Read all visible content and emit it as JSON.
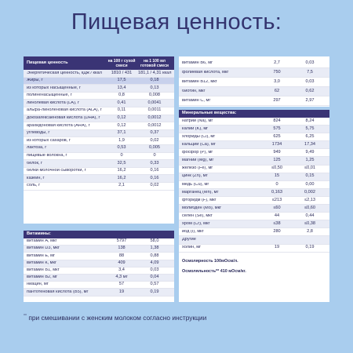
{
  "title": "Пищевая ценность:",
  "main": {
    "header": [
      "Пищевая ценность",
      "на 100 г сухой смеси",
      "на 1 100 мл готовой смеси"
    ],
    "rows": [
      [
        "Энергетическая ценность, кДж / ккал",
        "1810 / 431",
        "181,1 / 4,31 ккал"
      ],
      [
        "Жиры, г",
        "17,5",
        "0,18"
      ],
      [
        "из которых насыщенные, г",
        "13,4",
        "0,13"
      ],
      [
        "полиненасыщенные, г",
        "0,8",
        "0,008"
      ],
      [
        "линолевая кислота (LA), г",
        "0,41",
        "0,0041"
      ],
      [
        "альфа-линоленовая кислота (ALA), г",
        "0,11",
        "0,0011"
      ],
      [
        "докозагексаеновая кислота (DHA), г",
        "0,12",
        "0,0012"
      ],
      [
        "арахидоновая кислота (ARA), г",
        "0,12",
        "0,0012"
      ],
      [
        "углеводы, г",
        "37,1",
        "0,37"
      ],
      [
        "из которых сахаров, г",
        "1,9",
        "0,02"
      ],
      [
        "лактоза, г",
        "0,53",
        "0,005"
      ],
      [
        "пищевые волокна, г",
        "0",
        "0"
      ],
      [
        "белок, г",
        "32,5",
        "0,33"
      ],
      [
        "белки молочной сыворотки, г",
        "16,2",
        "0,16"
      ],
      [
        "казеин, г",
        "16,2",
        "0,16"
      ],
      [
        "соль, г",
        "2,1",
        "0,02"
      ]
    ]
  },
  "vitamins": {
    "header": "Витамины:",
    "rows": [
      [
        "витамин А, мкг",
        "5797",
        "58,0"
      ],
      [
        "витамин D3, мкг",
        "138",
        "1,38"
      ],
      [
        "витамин Е, мг",
        "88",
        "0,88"
      ],
      [
        "витамин К, мкг",
        "409",
        "4,09"
      ],
      [
        "витамин В1, мкг",
        "3,4",
        "0,03"
      ],
      [
        "витамин В2, мг",
        "4,3 мг",
        "0,04"
      ],
      [
        "ниацин, мг",
        "57",
        "0,57"
      ],
      [
        "пантотеновая кислота (В5), мг",
        "19",
        "0,19"
      ]
    ]
  },
  "vitamins2": {
    "rows": [
      [
        "витамин В6, мг",
        "2,7",
        "0,03"
      ],
      [
        "фолиевая кислота, мкг",
        "750",
        "7,5"
      ],
      [
        "витамин В12, мкг",
        "3,0",
        "0,03"
      ],
      [
        "биотин, мкг",
        "62",
        "0,62"
      ],
      [
        "витамин С, мг",
        "297",
        "2,97"
      ]
    ]
  },
  "minerals": {
    "header": "Минеральные вещества:",
    "rows": [
      [
        "натрий (Na), мг",
        "824",
        "8,24"
      ],
      [
        "калий (K), мг",
        "575",
        "5,75"
      ],
      [
        "хлориды (Cl), мг",
        "625",
        "6,25"
      ],
      [
        "кальций (Ca), мг",
        "1734",
        "17,34"
      ],
      [
        "фосфор (P), мг",
        "949",
        "9,49"
      ],
      [
        "магний (Mg), мг",
        "125",
        "1,25"
      ],
      [
        "железо (Fe), мг",
        "≤0,50",
        "≤0,01"
      ],
      [
        "цинк (Zn), мг",
        "15",
        "0,15"
      ],
      [
        "медь (Cu), мг",
        "0",
        "0,00"
      ],
      [
        "марганец (Mn), мг",
        "0,163",
        "0,002"
      ],
      [
        "фторидм (F), мкг",
        "≤213",
        "≤2,13"
      ],
      [
        "молибден (Mo), мкг",
        "≤60",
        "≤0,60"
      ],
      [
        "селен (Se), мкг",
        "44",
        "0,44"
      ],
      [
        "хром (Cr), мкг",
        "≤38",
        "≤0,38"
      ],
      [
        "йод (I), мкг",
        "280",
        "2,8"
      ],
      [
        "Другие",
        "",
        ""
      ],
      [
        "холин, мг",
        "19",
        "0,19"
      ]
    ],
    "osm1": "Осмолярность 100мОсм/л.",
    "osm2": "Осмоляльность** 410 мОсм/кг."
  },
  "footnote": {
    "mark": "°°",
    "text": "при смешивании с женским молоком согласно инструкции"
  }
}
